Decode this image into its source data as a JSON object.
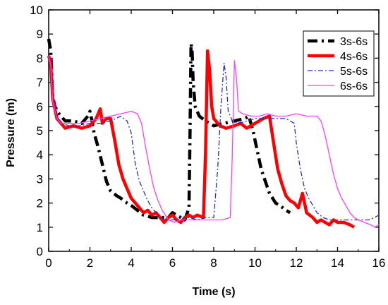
{
  "chart_data": {
    "type": "line",
    "xlabel": "Time (s)",
    "ylabel": "Pressure (m)",
    "xlim": [
      0,
      16
    ],
    "ylim": [
      0,
      10
    ],
    "xticks": [
      0,
      2,
      4,
      6,
      8,
      10,
      12,
      14,
      16
    ],
    "yticks": [
      0,
      1,
      2,
      3,
      4,
      5,
      6,
      7,
      8,
      9,
      10
    ],
    "grid": false,
    "legend_position": "top-right",
    "series": [
      {
        "name": "3s-6s",
        "color": "#000000",
        "style": "dash-dot-thick",
        "points": [
          [
            0.0,
            8.8
          ],
          [
            0.1,
            8.3
          ],
          [
            0.2,
            6.4
          ],
          [
            0.3,
            6.0
          ],
          [
            0.5,
            5.7
          ],
          [
            0.8,
            5.4
          ],
          [
            1.2,
            5.4
          ],
          [
            1.6,
            5.3
          ],
          [
            1.9,
            5.6
          ],
          [
            2.0,
            5.8
          ],
          [
            2.1,
            5.4
          ],
          [
            2.2,
            4.9
          ],
          [
            2.4,
            4.3
          ],
          [
            2.6,
            3.6
          ],
          [
            2.8,
            2.9
          ],
          [
            3.0,
            2.5
          ],
          [
            3.3,
            2.3
          ],
          [
            3.5,
            2.2
          ],
          [
            3.8,
            2.0
          ],
          [
            4.0,
            1.9
          ],
          [
            4.3,
            1.7
          ],
          [
            4.6,
            1.5
          ],
          [
            5.0,
            1.4
          ],
          [
            5.4,
            1.4
          ],
          [
            5.8,
            1.4
          ],
          [
            6.0,
            1.6
          ],
          [
            6.2,
            1.5
          ],
          [
            6.4,
            1.4
          ],
          [
            6.6,
            1.3
          ],
          [
            6.8,
            1.8
          ],
          [
            6.85,
            5.0
          ],
          [
            6.9,
            8.6
          ],
          [
            6.95,
            8.3
          ],
          [
            7.0,
            7.0
          ],
          [
            7.1,
            6.0
          ],
          [
            7.3,
            5.6
          ],
          [
            7.6,
            5.4
          ],
          [
            8.0,
            5.2
          ],
          [
            8.5,
            5.3
          ],
          [
            9.0,
            5.4
          ],
          [
            9.5,
            5.5
          ],
          [
            9.7,
            5.6
          ],
          [
            9.9,
            5.0
          ],
          [
            10.1,
            4.2
          ],
          [
            10.3,
            3.4
          ],
          [
            10.5,
            2.9
          ],
          [
            10.7,
            2.4
          ],
          [
            11.0,
            2.0
          ],
          [
            11.2,
            1.9
          ],
          [
            11.5,
            1.7
          ],
          [
            11.7,
            1.6
          ]
        ]
      },
      {
        "name": "4s-6s",
        "color": "#ff0000",
        "style": "solid-thick",
        "points": [
          [
            0.0,
            8.1
          ],
          [
            0.1,
            7.8
          ],
          [
            0.2,
            6.3
          ],
          [
            0.4,
            5.5
          ],
          [
            0.6,
            5.3
          ],
          [
            0.8,
            5.1
          ],
          [
            1.2,
            5.2
          ],
          [
            1.6,
            5.1
          ],
          [
            2.0,
            5.2
          ],
          [
            2.3,
            5.5
          ],
          [
            2.5,
            5.9
          ],
          [
            2.6,
            5.3
          ],
          [
            2.8,
            5.5
          ],
          [
            3.0,
            5.5
          ],
          [
            3.2,
            4.6
          ],
          [
            3.4,
            3.6
          ],
          [
            3.6,
            3.0
          ],
          [
            3.8,
            2.6
          ],
          [
            4.0,
            2.2
          ],
          [
            4.2,
            2.0
          ],
          [
            4.4,
            1.8
          ],
          [
            4.6,
            1.6
          ],
          [
            4.8,
            1.7
          ],
          [
            5.0,
            1.5
          ],
          [
            5.2,
            1.6
          ],
          [
            5.4,
            1.4
          ],
          [
            5.6,
            1.2
          ],
          [
            5.8,
            1.4
          ],
          [
            6.0,
            1.5
          ],
          [
            6.2,
            1.3
          ],
          [
            6.4,
            1.2
          ],
          [
            6.6,
            1.4
          ],
          [
            6.8,
            1.5
          ],
          [
            7.0,
            1.4
          ],
          [
            7.2,
            1.5
          ],
          [
            7.5,
            1.4
          ],
          [
            7.6,
            4.0
          ],
          [
            7.7,
            8.3
          ],
          [
            7.8,
            7.5
          ],
          [
            7.9,
            6.0
          ],
          [
            8.0,
            5.5
          ],
          [
            8.3,
            5.2
          ],
          [
            8.6,
            5.1
          ],
          [
            9.0,
            5.2
          ],
          [
            9.3,
            5.3
          ],
          [
            9.6,
            5.1
          ],
          [
            10.0,
            5.3
          ],
          [
            10.4,
            5.5
          ],
          [
            10.7,
            5.6
          ],
          [
            10.9,
            4.5
          ],
          [
            11.1,
            3.4
          ],
          [
            11.3,
            2.8
          ],
          [
            11.5,
            2.3
          ],
          [
            11.7,
            2.1
          ],
          [
            11.9,
            2.0
          ],
          [
            12.1,
            1.8
          ],
          [
            12.3,
            2.4
          ],
          [
            12.5,
            1.6
          ],
          [
            12.8,
            1.4
          ],
          [
            13.0,
            1.2
          ],
          [
            13.2,
            1.3
          ],
          [
            13.4,
            1.2
          ],
          [
            13.6,
            1.1
          ],
          [
            13.8,
            1.3
          ],
          [
            14.0,
            1.2
          ],
          [
            14.3,
            1.2
          ],
          [
            14.6,
            1.1
          ],
          [
            14.8,
            1.0
          ]
        ]
      },
      {
        "name": "5s-6s",
        "color": "#1f2ed1",
        "style": "dash-dot-thin",
        "points": [
          [
            0.0,
            8.1
          ],
          [
            0.1,
            7.8
          ],
          [
            0.2,
            6.3
          ],
          [
            0.4,
            5.6
          ],
          [
            0.6,
            5.3
          ],
          [
            1.0,
            5.2
          ],
          [
            1.5,
            5.2
          ],
          [
            2.0,
            5.3
          ],
          [
            2.5,
            5.3
          ],
          [
            3.0,
            5.4
          ],
          [
            3.5,
            5.6
          ],
          [
            3.8,
            5.4
          ],
          [
            4.0,
            4.9
          ],
          [
            4.2,
            3.6
          ],
          [
            4.4,
            2.9
          ],
          [
            4.6,
            2.5
          ],
          [
            4.8,
            2.1
          ],
          [
            5.0,
            1.8
          ],
          [
            5.3,
            1.5
          ],
          [
            5.6,
            1.3
          ],
          [
            6.0,
            1.3
          ],
          [
            6.4,
            1.3
          ],
          [
            6.8,
            1.4
          ],
          [
            7.2,
            1.3
          ],
          [
            7.6,
            1.4
          ],
          [
            8.0,
            1.4
          ],
          [
            8.2,
            3.5
          ],
          [
            8.35,
            6.0
          ],
          [
            8.5,
            7.8
          ],
          [
            8.6,
            7.2
          ],
          [
            8.7,
            5.8
          ],
          [
            8.9,
            5.4
          ],
          [
            9.2,
            5.3
          ],
          [
            9.6,
            5.4
          ],
          [
            10.0,
            5.5
          ],
          [
            10.5,
            5.5
          ],
          [
            11.0,
            5.5
          ],
          [
            11.5,
            5.5
          ],
          [
            11.9,
            5.3
          ],
          [
            12.0,
            4.5
          ],
          [
            12.2,
            3.4
          ],
          [
            12.4,
            2.6
          ],
          [
            12.6,
            2.2
          ],
          [
            12.8,
            1.9
          ],
          [
            13.0,
            1.6
          ],
          [
            13.3,
            1.4
          ],
          [
            13.6,
            1.3
          ],
          [
            14.0,
            1.3
          ],
          [
            14.5,
            1.3
          ],
          [
            15.0,
            1.3
          ],
          [
            15.5,
            1.3
          ],
          [
            15.8,
            1.4
          ],
          [
            16.0,
            1.5
          ]
        ]
      },
      {
        "name": "6s-6s",
        "color": "#ff3dff",
        "style": "solid-thin",
        "points": [
          [
            0.0,
            8.1
          ],
          [
            0.1,
            7.7
          ],
          [
            0.2,
            6.2
          ],
          [
            0.4,
            5.5
          ],
          [
            0.6,
            5.3
          ],
          [
            1.0,
            5.3
          ],
          [
            1.5,
            5.3
          ],
          [
            2.0,
            5.4
          ],
          [
            2.5,
            5.5
          ],
          [
            3.0,
            5.6
          ],
          [
            3.5,
            5.7
          ],
          [
            4.0,
            5.8
          ],
          [
            4.3,
            5.7
          ],
          [
            4.5,
            5.3
          ],
          [
            4.7,
            4.3
          ],
          [
            4.9,
            3.4
          ],
          [
            5.1,
            2.6
          ],
          [
            5.3,
            2.1
          ],
          [
            5.5,
            1.7
          ],
          [
            5.8,
            1.3
          ],
          [
            6.1,
            1.2
          ],
          [
            6.4,
            1.3
          ],
          [
            6.8,
            1.3
          ],
          [
            7.2,
            1.3
          ],
          [
            7.6,
            1.3
          ],
          [
            8.0,
            1.3
          ],
          [
            8.4,
            1.3
          ],
          [
            8.8,
            1.4
          ],
          [
            8.9,
            4.0
          ],
          [
            9.0,
            7.9
          ],
          [
            9.1,
            7.2
          ],
          [
            9.2,
            5.8
          ],
          [
            9.4,
            5.7
          ],
          [
            9.8,
            5.6
          ],
          [
            10.2,
            5.6
          ],
          [
            10.6,
            5.7
          ],
          [
            11.0,
            5.6
          ],
          [
            11.5,
            5.6
          ],
          [
            12.0,
            5.7
          ],
          [
            12.5,
            5.6
          ],
          [
            13.0,
            5.6
          ],
          [
            13.2,
            5.4
          ],
          [
            13.4,
            4.8
          ],
          [
            13.6,
            4.0
          ],
          [
            13.8,
            3.2
          ],
          [
            14.0,
            2.6
          ],
          [
            14.2,
            2.2
          ],
          [
            14.4,
            1.9
          ],
          [
            14.6,
            1.6
          ],
          [
            14.8,
            1.4
          ],
          [
            15.0,
            1.3
          ],
          [
            15.3,
            1.2
          ],
          [
            15.6,
            1.1
          ],
          [
            15.8,
            1.0
          ],
          [
            16.0,
            1.1
          ]
        ]
      }
    ]
  }
}
